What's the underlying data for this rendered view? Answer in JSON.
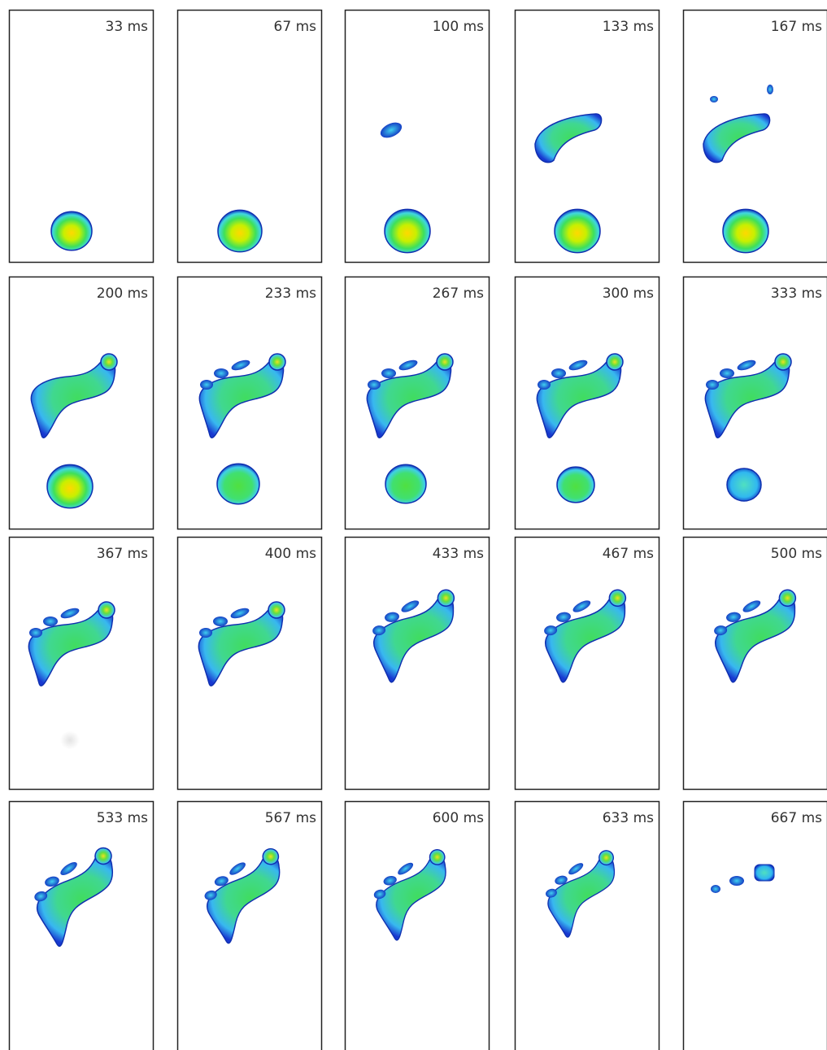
{
  "frames": [
    "33 ms",
    "67 ms",
    "100 ms",
    "133 ms",
    "167 ms",
    "200 ms",
    "233 ms",
    "267 ms",
    "300 ms",
    "333 ms",
    "367 ms",
    "400 ms",
    "433 ms",
    "467 ms",
    "500 ms",
    "533 ms",
    "567 ms",
    "600 ms",
    "633 ms",
    "667 ms"
  ]
}
